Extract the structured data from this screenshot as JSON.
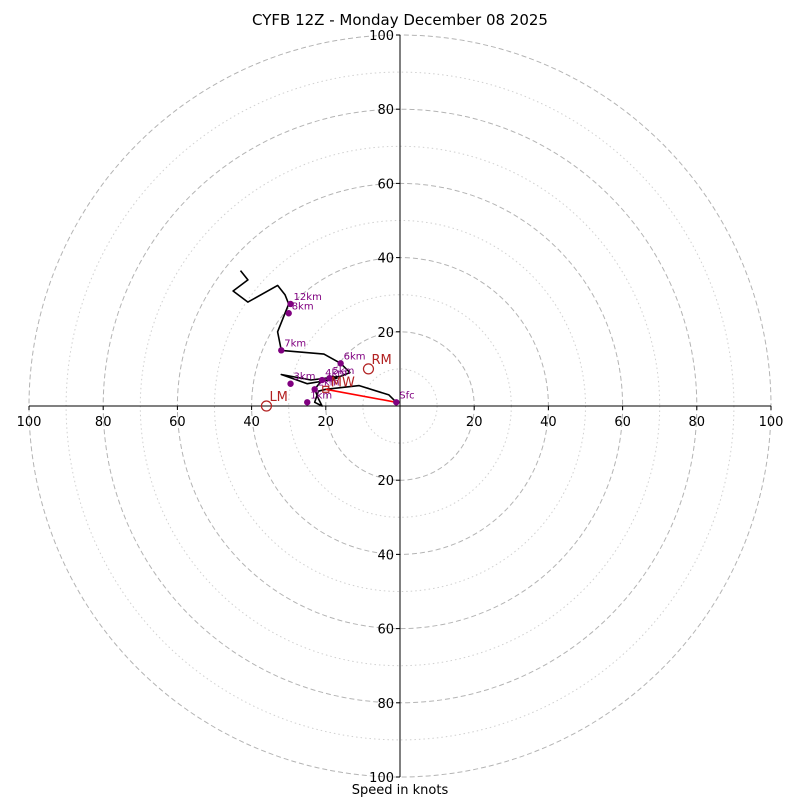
{
  "title": "CYFB 12Z - Monday December 08 2025",
  "xlabel": "Speed in knots",
  "chart_data": {
    "type": "hodograph",
    "title": "CYFB 12Z - Monday December 08 2025",
    "xlabel": "Speed in knots",
    "range": [
      -100,
      100
    ],
    "ring_major": [
      20,
      40,
      60,
      80,
      100
    ],
    "ring_minor": [
      10,
      30,
      50,
      70,
      90
    ],
    "tick_labels": [
      {
        "value": -100,
        "text": "100"
      },
      {
        "value": -80,
        "text": "80"
      },
      {
        "value": -60,
        "text": "60"
      },
      {
        "value": -40,
        "text": "40"
      },
      {
        "value": -20,
        "text": "20"
      },
      {
        "value": 20,
        "text": "20"
      },
      {
        "value": 40,
        "text": "40"
      },
      {
        "value": 60,
        "text": "60"
      },
      {
        "value": 80,
        "text": "80"
      },
      {
        "value": 100,
        "text": "100"
      }
    ],
    "hodograph_uv": [
      [
        -1,
        1
      ],
      [
        -3,
        3
      ],
      [
        -11,
        5.5
      ],
      [
        -20,
        4.5
      ],
      [
        -22,
        4
      ],
      [
        -23,
        1
      ],
      [
        -21,
        0
      ],
      [
        -22,
        2
      ],
      [
        -23,
        4.5
      ],
      [
        -21,
        7
      ],
      [
        -18,
        8
      ],
      [
        -17,
        7.5
      ],
      [
        -19,
        7
      ],
      [
        -25,
        6
      ],
      [
        -32,
        8.5
      ],
      [
        -24,
        7
      ],
      [
        -20,
        7.5
      ],
      [
        -16,
        8
      ],
      [
        -13.5,
        9
      ],
      [
        -16,
        11.5
      ],
      [
        -20.5,
        14
      ],
      [
        -32,
        15
      ],
      [
        -33,
        20
      ],
      [
        -31,
        25
      ],
      [
        -30,
        27.5
      ],
      [
        -31,
        30
      ],
      [
        -33,
        32.5
      ],
      [
        -41,
        28
      ],
      [
        -45,
        31
      ],
      [
        -41,
        34
      ],
      [
        -43,
        36.5
      ]
    ],
    "height_points": [
      {
        "label": "Sfc",
        "u": -1,
        "v": 1
      },
      {
        "label": "1km",
        "u": -25,
        "v": 1
      },
      {
        "label": "2km",
        "u": -23,
        "v": 4.5
      },
      {
        "label": "3km",
        "u": -29.5,
        "v": 6
      },
      {
        "label": "4km",
        "u": -21,
        "v": 7
      },
      {
        "label": "5km",
        "u": -19,
        "v": 7.5
      },
      {
        "label": "6km",
        "u": -16,
        "v": 11.5
      },
      {
        "label": "7km",
        "u": -32,
        "v": 15
      },
      {
        "label": "8km",
        "u": -30,
        "v": 25
      },
      {
        "label": "12km",
        "u": -29.5,
        "v": 27.5
      }
    ],
    "motions": [
      {
        "label": "RM",
        "u": -8.5,
        "v": 10
      },
      {
        "label": "LM",
        "u": -36,
        "v": 0
      }
    ],
    "mean_wind": {
      "label": "MW",
      "u": -20,
      "v": 4.5
    },
    "shear_vector": {
      "from": [
        -1,
        1
      ],
      "to": [
        -20,
        4.5
      ]
    },
    "colors": {
      "hodograph": "#000000",
      "height_points": "#800080",
      "motions": "#b22222",
      "shear": "#ff0000",
      "rings": "#b4b4b4",
      "axes": "#000000"
    }
  }
}
